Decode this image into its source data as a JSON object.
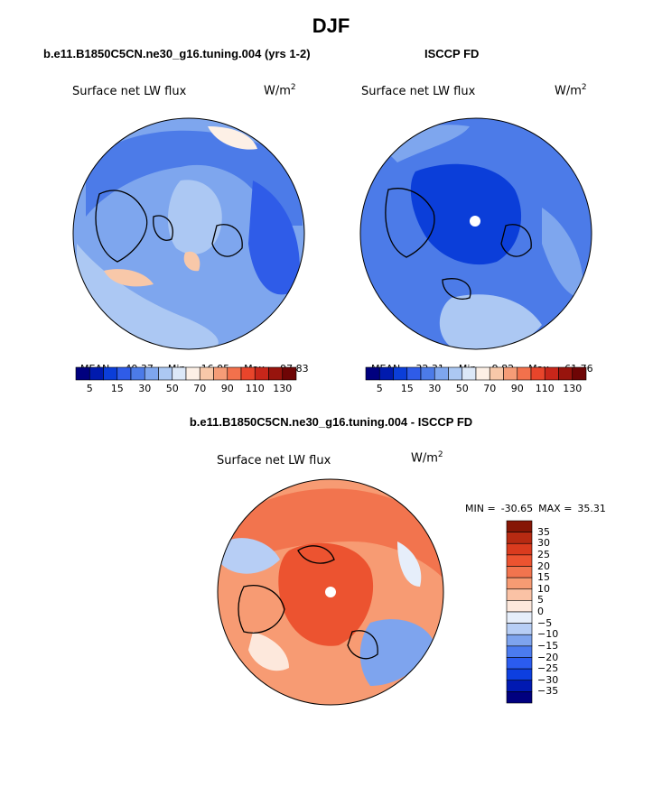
{
  "page": {
    "title": "DJF"
  },
  "colors": {
    "scale20": [
      "#00007f",
      "#001aae",
      "#0b3ed9",
      "#2f5ce8",
      "#4c7be8",
      "#7ea6ee",
      "#acc8f3",
      "#dce8f8",
      "#fdf0e6",
      "#f8c8a9",
      "#f59c77",
      "#f2714c",
      "#e8452b",
      "#c8261a",
      "#98140d",
      "#6e0505"
    ],
    "diff": [
      "#00007f",
      "#0019b2",
      "#0d3fe0",
      "#2b5cf0",
      "#4b7bef",
      "#7ea4ee",
      "#b7cef5",
      "#e6eefa",
      "#fde8dc",
      "#fac2a5",
      "#f79b73",
      "#f2744e",
      "#ec5330",
      "#da3b1e",
      "#b72a12",
      "#861606"
    ]
  },
  "chart_data": [
    {
      "type": "heatmap",
      "projection": "polar-stereographic",
      "title": "b.e11.B1850C5CN.ne30_g16.tuning.004 (yrs 1-2)",
      "field_label": "Surface net LW flux",
      "units": "W/m",
      "units_exp": "2",
      "stats": {
        "mean_label": "MEAN=",
        "mean": "40.37",
        "min_label": "Min=",
        "min": "16.05",
        "max_label": "Max=",
        "max": "97.83"
      },
      "colorbar_levels": [
        "5",
        "15",
        "30",
        "50",
        "70",
        "90",
        "110",
        "130"
      ]
    },
    {
      "type": "heatmap",
      "projection": "polar-stereographic",
      "title": "ISCCP FD",
      "field_label": "Surface net LW flux",
      "units": "W/m",
      "units_exp": "2",
      "stats": {
        "mean_label": "MEAN=",
        "mean": "32.31",
        "min_label": "Min=",
        "min": "9.82",
        "max_label": "Max=",
        "max": "61.76"
      },
      "colorbar_levels": [
        "5",
        "15",
        "30",
        "50",
        "70",
        "90",
        "110",
        "130"
      ]
    },
    {
      "type": "heatmap",
      "projection": "polar-stereographic",
      "title": "b.e11.B1850C5CN.ne30_g16.tuning.004 - ISCCP FD",
      "field_label": "Surface net LW flux",
      "units": "W/m",
      "units_exp": "2",
      "stats": {
        "min_label": "MIN =",
        "min": "-30.65",
        "max_label": "MAX =",
        "max": "35.31"
      },
      "colorbar_levels": [
        "35",
        "30",
        "25",
        "20",
        "15",
        "10",
        "5",
        "0",
        "−5",
        "−10",
        "−15",
        "−20",
        "−25",
        "−30",
        "−35"
      ]
    }
  ]
}
